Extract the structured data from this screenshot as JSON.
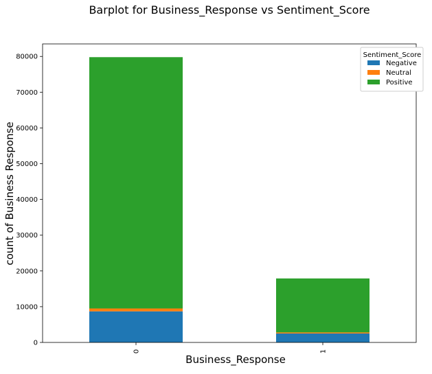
{
  "chart_data": {
    "type": "bar",
    "stacked": true,
    "title": "Barplot for Business_Response vs Sentiment_Score",
    "xlabel": "Business_Response",
    "ylabel": "count of Business Response",
    "categories": [
      "0",
      "1"
    ],
    "ylim": [
      0,
      83500
    ],
    "yticks": [
      0,
      10000,
      20000,
      30000,
      40000,
      50000,
      60000,
      70000,
      80000
    ],
    "legend": {
      "title": "Sentiment_Score",
      "placement": "top-right"
    },
    "grid": false,
    "series": [
      {
        "name": "Negative",
        "color": "#1f77b4",
        "values": [
          8700,
          2500
        ]
      },
      {
        "name": "Neutral",
        "color": "#ff7f0e",
        "values": [
          800,
          300
        ]
      },
      {
        "name": "Positive",
        "color": "#2ca02c",
        "values": [
          70300,
          15100
        ]
      }
    ]
  }
}
